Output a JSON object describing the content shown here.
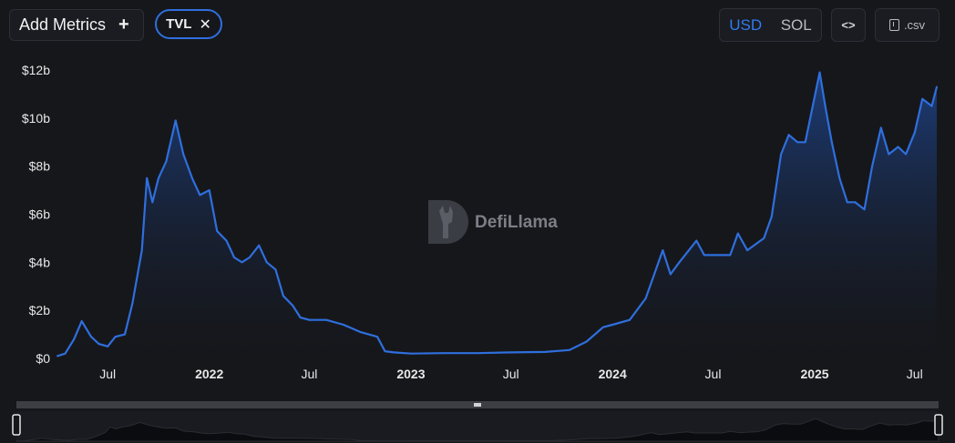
{
  "toolbar": {
    "add_metrics_label": "Add Metrics",
    "add_icon": "plus-icon",
    "metric_chip_label": "TVL",
    "remove_icon": "close-icon",
    "currency_options": [
      "USD",
      "SOL"
    ],
    "selected_currency": "USD",
    "embed_label": "<>",
    "embed_icon": "code-icon",
    "csv_label": ".csv",
    "csv_icon": "download-icon"
  },
  "watermark": {
    "text": "DefiLlama",
    "logo_icon": "llama-logo-icon"
  },
  "colors": {
    "line": "#2f6fdd",
    "background": "#16171b",
    "accent": "#2f7bf0"
  },
  "chart_data": {
    "type": "area",
    "title": "",
    "xlabel": "",
    "ylabel": "",
    "x_ticks": [
      {
        "label": "Jul",
        "x": "2021-07",
        "bold": false
      },
      {
        "label": "2022",
        "x": "2022-01",
        "bold": true
      },
      {
        "label": "Jul",
        "x": "2022-07",
        "bold": false
      },
      {
        "label": "2023",
        "x": "2023-01",
        "bold": true
      },
      {
        "label": "Jul",
        "x": "2023-07",
        "bold": false
      },
      {
        "label": "2024",
        "x": "2024-01",
        "bold": true
      },
      {
        "label": "Jul",
        "x": "2024-07",
        "bold": false
      },
      {
        "label": "2025",
        "x": "2025-01",
        "bold": true
      },
      {
        "label": "Jul",
        "x": "2025-07",
        "bold": false
      }
    ],
    "y_ticks": [
      {
        "label": "$0",
        "value": 0
      },
      {
        "label": "$2b",
        "value": 2
      },
      {
        "label": "$4b",
        "value": 4
      },
      {
        "label": "$6b",
        "value": 6
      },
      {
        "label": "$8b",
        "value": 8
      },
      {
        "label": "$10b",
        "value": 10
      },
      {
        "label": "$12b",
        "value": 12
      }
    ],
    "ylim": [
      0,
      12
    ],
    "y_unit": "billion USD",
    "grid": false,
    "legend": "none",
    "series": [
      {
        "values": [
          [
            "2021-04-01",
            0.1
          ],
          [
            "2021-04-15",
            0.2
          ],
          [
            "2021-05-01",
            0.8
          ],
          [
            "2021-05-15",
            1.55
          ],
          [
            "2021-06-01",
            0.9
          ],
          [
            "2021-06-15",
            0.6
          ],
          [
            "2021-07-01",
            0.5
          ],
          [
            "2021-07-15",
            0.9
          ],
          [
            "2021-08-01",
            1.0
          ],
          [
            "2021-08-15",
            2.3
          ],
          [
            "2021-09-01",
            4.5
          ],
          [
            "2021-09-10",
            7.5
          ],
          [
            "2021-09-20",
            6.5
          ],
          [
            "2021-10-01",
            7.5
          ],
          [
            "2021-10-15",
            8.2
          ],
          [
            "2021-11-01",
            9.9
          ],
          [
            "2021-11-15",
            8.5
          ],
          [
            "2021-12-01",
            7.5
          ],
          [
            "2021-12-15",
            6.8
          ],
          [
            "2022-01-01",
            7.0
          ],
          [
            "2022-01-15",
            5.3
          ],
          [
            "2022-02-01",
            4.9
          ],
          [
            "2022-02-15",
            4.2
          ],
          [
            "2022-03-01",
            4.0
          ],
          [
            "2022-03-15",
            4.2
          ],
          [
            "2022-04-01",
            4.7
          ],
          [
            "2022-04-15",
            4.0
          ],
          [
            "2022-05-01",
            3.7
          ],
          [
            "2022-05-15",
            2.6
          ],
          [
            "2022-06-01",
            2.2
          ],
          [
            "2022-06-15",
            1.7
          ],
          [
            "2022-07-01",
            1.6
          ],
          [
            "2022-08-01",
            1.6
          ],
          [
            "2022-09-01",
            1.4
          ],
          [
            "2022-10-01",
            1.1
          ],
          [
            "2022-11-01",
            0.9
          ],
          [
            "2022-11-15",
            0.3
          ],
          [
            "2022-12-01",
            0.25
          ],
          [
            "2023-01-01",
            0.2
          ],
          [
            "2023-03-01",
            0.22
          ],
          [
            "2023-05-01",
            0.22
          ],
          [
            "2023-07-01",
            0.25
          ],
          [
            "2023-09-01",
            0.27
          ],
          [
            "2023-10-15",
            0.35
          ],
          [
            "2023-11-15",
            0.7
          ],
          [
            "2023-12-15",
            1.3
          ],
          [
            "2024-01-01",
            1.4
          ],
          [
            "2024-02-01",
            1.6
          ],
          [
            "2024-03-01",
            2.5
          ],
          [
            "2024-04-01",
            4.5
          ],
          [
            "2024-04-15",
            3.5
          ],
          [
            "2024-05-01",
            4.0
          ],
          [
            "2024-06-01",
            4.9
          ],
          [
            "2024-06-15",
            4.3
          ],
          [
            "2024-07-01",
            4.3
          ],
          [
            "2024-08-01",
            4.3
          ],
          [
            "2024-08-15",
            5.2
          ],
          [
            "2024-09-01",
            4.5
          ],
          [
            "2024-10-01",
            5.0
          ],
          [
            "2024-10-15",
            5.9
          ],
          [
            "2024-11-01",
            8.5
          ],
          [
            "2024-11-15",
            9.3
          ],
          [
            "2024-12-01",
            9.0
          ],
          [
            "2024-12-15",
            9.0
          ],
          [
            "2025-01-10",
            11.9
          ],
          [
            "2025-01-20",
            10.5
          ],
          [
            "2025-02-01",
            9.0
          ],
          [
            "2025-02-15",
            7.5
          ],
          [
            "2025-03-01",
            6.5
          ],
          [
            "2025-03-15",
            6.5
          ],
          [
            "2025-04-01",
            6.2
          ],
          [
            "2025-04-15",
            8.0
          ],
          [
            "2025-05-01",
            9.6
          ],
          [
            "2025-05-15",
            8.5
          ],
          [
            "2025-06-01",
            8.8
          ],
          [
            "2025-06-15",
            8.5
          ],
          [
            "2025-07-01",
            9.4
          ],
          [
            "2025-07-15",
            10.8
          ],
          [
            "2025-08-01",
            10.5
          ],
          [
            "2025-08-10",
            11.3
          ]
        ]
      }
    ]
  }
}
